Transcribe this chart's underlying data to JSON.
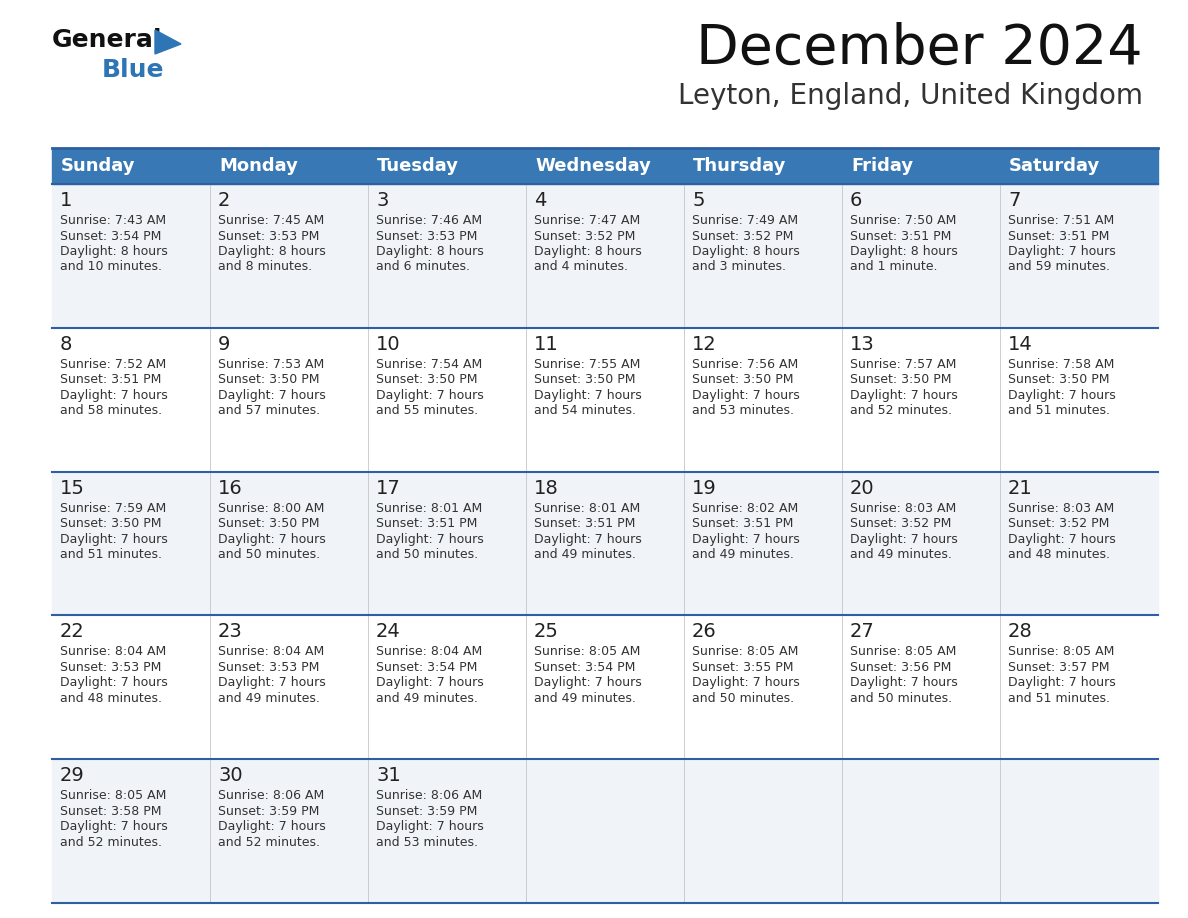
{
  "title": "December 2024",
  "subtitle": "Leyton, England, United Kingdom",
  "header_color": "#3878B4",
  "header_text_color": "#FFFFFF",
  "cell_bg_even": "#F0F4F8",
  "cell_bg_odd": "#FFFFFF",
  "day_number_color": "#222222",
  "text_color": "#333333",
  "divider_color": "#2E5FA3",
  "days_of_week": [
    "Sunday",
    "Monday",
    "Tuesday",
    "Wednesday",
    "Thursday",
    "Friday",
    "Saturday"
  ],
  "weeks": [
    [
      {
        "day": "1",
        "sunrise": "7:43 AM",
        "sunset": "3:54 PM",
        "daylight_h": "8 hours",
        "daylight_m": "and 10 minutes."
      },
      {
        "day": "2",
        "sunrise": "7:45 AM",
        "sunset": "3:53 PM",
        "daylight_h": "8 hours",
        "daylight_m": "and 8 minutes."
      },
      {
        "day": "3",
        "sunrise": "7:46 AM",
        "sunset": "3:53 PM",
        "daylight_h": "8 hours",
        "daylight_m": "and 6 minutes."
      },
      {
        "day": "4",
        "sunrise": "7:47 AM",
        "sunset": "3:52 PM",
        "daylight_h": "8 hours",
        "daylight_m": "and 4 minutes."
      },
      {
        "day": "5",
        "sunrise": "7:49 AM",
        "sunset": "3:52 PM",
        "daylight_h": "8 hours",
        "daylight_m": "and 3 minutes."
      },
      {
        "day": "6",
        "sunrise": "7:50 AM",
        "sunset": "3:51 PM",
        "daylight_h": "8 hours",
        "daylight_m": "and 1 minute."
      },
      {
        "day": "7",
        "sunrise": "7:51 AM",
        "sunset": "3:51 PM",
        "daylight_h": "7 hours",
        "daylight_m": "and 59 minutes."
      }
    ],
    [
      {
        "day": "8",
        "sunrise": "7:52 AM",
        "sunset": "3:51 PM",
        "daylight_h": "7 hours",
        "daylight_m": "and 58 minutes."
      },
      {
        "day": "9",
        "sunrise": "7:53 AM",
        "sunset": "3:50 PM",
        "daylight_h": "7 hours",
        "daylight_m": "and 57 minutes."
      },
      {
        "day": "10",
        "sunrise": "7:54 AM",
        "sunset": "3:50 PM",
        "daylight_h": "7 hours",
        "daylight_m": "and 55 minutes."
      },
      {
        "day": "11",
        "sunrise": "7:55 AM",
        "sunset": "3:50 PM",
        "daylight_h": "7 hours",
        "daylight_m": "and 54 minutes."
      },
      {
        "day": "12",
        "sunrise": "7:56 AM",
        "sunset": "3:50 PM",
        "daylight_h": "7 hours",
        "daylight_m": "and 53 minutes."
      },
      {
        "day": "13",
        "sunrise": "7:57 AM",
        "sunset": "3:50 PM",
        "daylight_h": "7 hours",
        "daylight_m": "and 52 minutes."
      },
      {
        "day": "14",
        "sunrise": "7:58 AM",
        "sunset": "3:50 PM",
        "daylight_h": "7 hours",
        "daylight_m": "and 51 minutes."
      }
    ],
    [
      {
        "day": "15",
        "sunrise": "7:59 AM",
        "sunset": "3:50 PM",
        "daylight_h": "7 hours",
        "daylight_m": "and 51 minutes."
      },
      {
        "day": "16",
        "sunrise": "8:00 AM",
        "sunset": "3:50 PM",
        "daylight_h": "7 hours",
        "daylight_m": "and 50 minutes."
      },
      {
        "day": "17",
        "sunrise": "8:01 AM",
        "sunset": "3:51 PM",
        "daylight_h": "7 hours",
        "daylight_m": "and 50 minutes."
      },
      {
        "day": "18",
        "sunrise": "8:01 AM",
        "sunset": "3:51 PM",
        "daylight_h": "7 hours",
        "daylight_m": "and 49 minutes."
      },
      {
        "day": "19",
        "sunrise": "8:02 AM",
        "sunset": "3:51 PM",
        "daylight_h": "7 hours",
        "daylight_m": "and 49 minutes."
      },
      {
        "day": "20",
        "sunrise": "8:03 AM",
        "sunset": "3:52 PM",
        "daylight_h": "7 hours",
        "daylight_m": "and 49 minutes."
      },
      {
        "day": "21",
        "sunrise": "8:03 AM",
        "sunset": "3:52 PM",
        "daylight_h": "7 hours",
        "daylight_m": "and 48 minutes."
      }
    ],
    [
      {
        "day": "22",
        "sunrise": "8:04 AM",
        "sunset": "3:53 PM",
        "daylight_h": "7 hours",
        "daylight_m": "and 48 minutes."
      },
      {
        "day": "23",
        "sunrise": "8:04 AM",
        "sunset": "3:53 PM",
        "daylight_h": "7 hours",
        "daylight_m": "and 49 minutes."
      },
      {
        "day": "24",
        "sunrise": "8:04 AM",
        "sunset": "3:54 PM",
        "daylight_h": "7 hours",
        "daylight_m": "and 49 minutes."
      },
      {
        "day": "25",
        "sunrise": "8:05 AM",
        "sunset": "3:54 PM",
        "daylight_h": "7 hours",
        "daylight_m": "and 49 minutes."
      },
      {
        "day": "26",
        "sunrise": "8:05 AM",
        "sunset": "3:55 PM",
        "daylight_h": "7 hours",
        "daylight_m": "and 50 minutes."
      },
      {
        "day": "27",
        "sunrise": "8:05 AM",
        "sunset": "3:56 PM",
        "daylight_h": "7 hours",
        "daylight_m": "and 50 minutes."
      },
      {
        "day": "28",
        "sunrise": "8:05 AM",
        "sunset": "3:57 PM",
        "daylight_h": "7 hours",
        "daylight_m": "and 51 minutes."
      }
    ],
    [
      {
        "day": "29",
        "sunrise": "8:05 AM",
        "sunset": "3:58 PM",
        "daylight_h": "7 hours",
        "daylight_m": "and 52 minutes."
      },
      {
        "day": "30",
        "sunrise": "8:06 AM",
        "sunset": "3:59 PM",
        "daylight_h": "7 hours",
        "daylight_m": "and 52 minutes."
      },
      {
        "day": "31",
        "sunrise": "8:06 AM",
        "sunset": "3:59 PM",
        "daylight_h": "7 hours",
        "daylight_m": "and 53 minutes."
      },
      null,
      null,
      null,
      null
    ]
  ]
}
